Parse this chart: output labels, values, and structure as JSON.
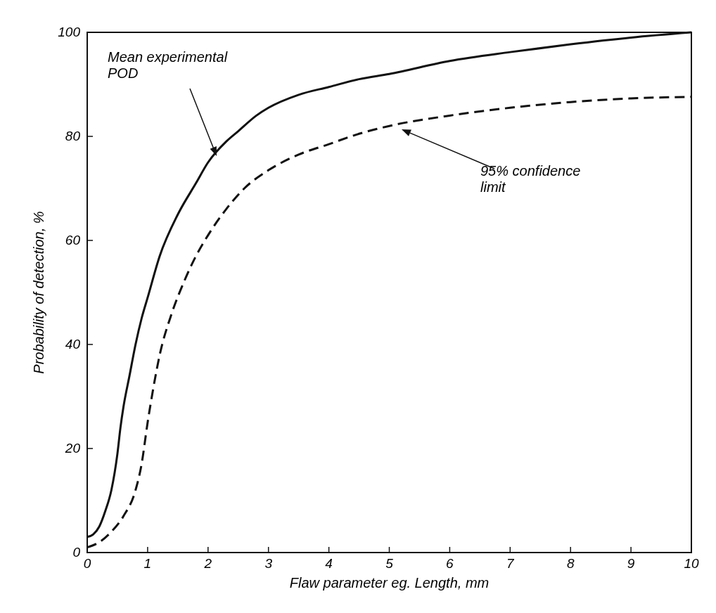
{
  "chart_data": {
    "type": "line",
    "xlabel": "Flaw parameter eg. Length, mm",
    "ylabel": "Probability of detection, %",
    "xlim": [
      0,
      10
    ],
    "ylim": [
      0,
      100
    ],
    "xticks": [
      0,
      1,
      2,
      3,
      4,
      5,
      6,
      7,
      8,
      9,
      10
    ],
    "yticks": [
      0,
      20,
      40,
      60,
      80,
      100
    ],
    "grid": false,
    "series": [
      {
        "color": "#111111",
        "line_style": "solid",
        "x": [
          0,
          0.1,
          0.2,
          0.3,
          0.4,
          0.5,
          0.55,
          0.6,
          0.7,
          0.8,
          0.9,
          1,
          1.2,
          1.5,
          1.8,
          2,
          2.3,
          2.5,
          2.8,
          3,
          3.5,
          4,
          4.5,
          5,
          6,
          7,
          8,
          9,
          10
        ],
        "values": [
          3,
          3.5,
          5,
          8,
          12,
          19,
          24,
          28,
          34,
          40,
          45,
          49,
          57,
          65,
          71,
          75,
          79,
          81,
          84,
          85.5,
          88,
          89.5,
          91,
          92,
          94.5,
          96.2,
          97.7,
          99,
          100
        ]
      },
      {
        "color": "#111111",
        "line_style": "dashed",
        "x": [
          0,
          0.2,
          0.4,
          0.6,
          0.8,
          0.9,
          1,
          1.1,
          1.2,
          1.4,
          1.6,
          1.8,
          2,
          2.3,
          2.6,
          3,
          3.5,
          4,
          4.5,
          5,
          6,
          7,
          8,
          9,
          10
        ],
        "values": [
          1,
          2,
          4,
          7,
          12,
          17,
          25,
          32,
          38,
          46,
          52,
          57,
          61,
          66,
          70,
          73.5,
          76.5,
          78.5,
          80.5,
          82,
          84,
          85.5,
          86.6,
          87.3,
          87.6
        ]
      }
    ],
    "annotations": [
      "Mean experimental POD",
      "95% confidence limit"
    ]
  }
}
